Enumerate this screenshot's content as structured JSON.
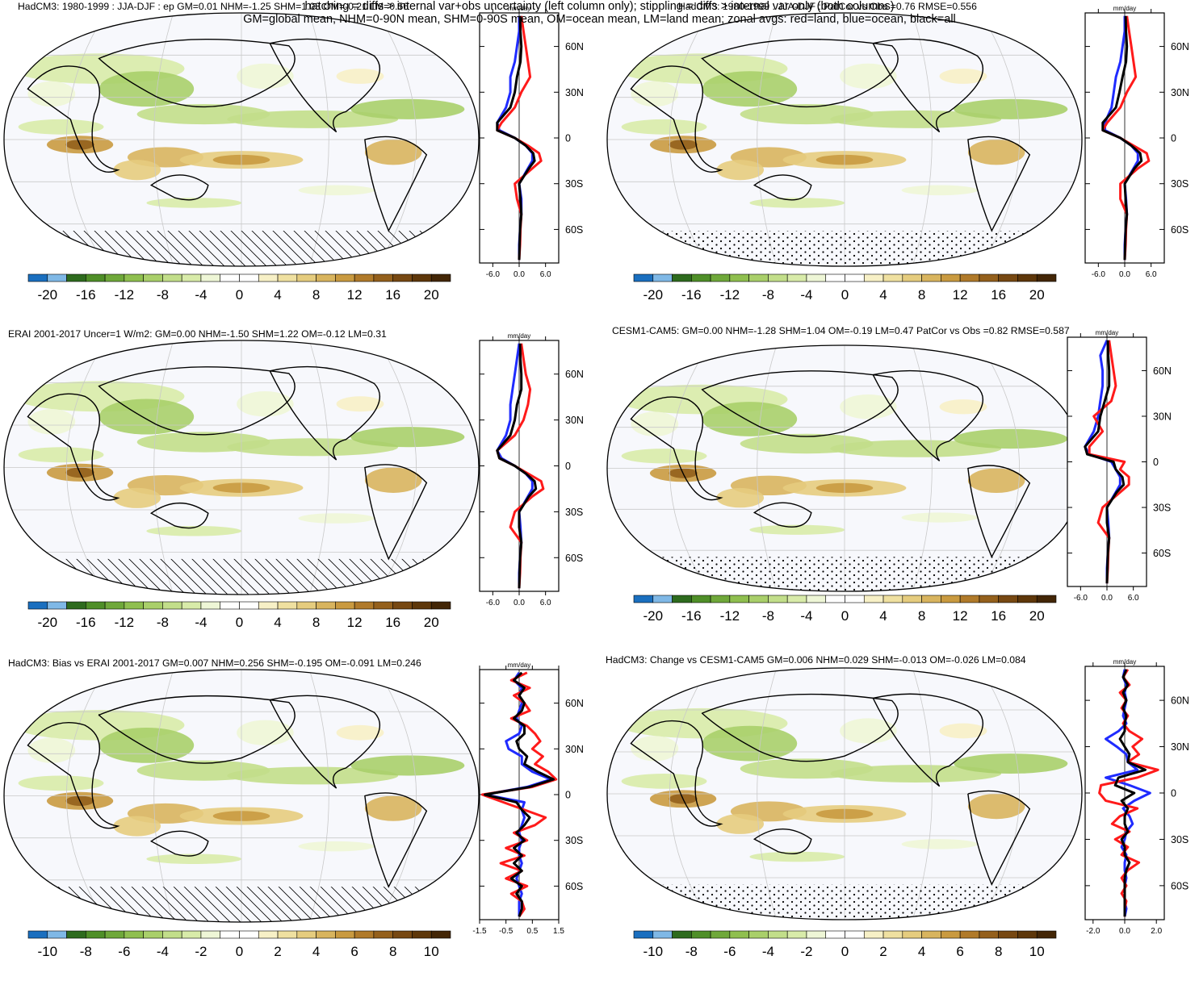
{
  "palette": [
    "#1a6fbf",
    "#7fb8e6",
    "#2e6b1e",
    "#4f8f28",
    "#6fa83a",
    "#8fbf4f",
    "#a9cf6a",
    "#c2de8a",
    "#d8eba9",
    "#eef6d6",
    "#ffffff",
    "#ffffff",
    "#f7f0c6",
    "#efe0a0",
    "#e5cc7e",
    "#d8b45e",
    "#c99a40",
    "#b07a2a",
    "#94601c",
    "#774812",
    "#5e370a",
    "#432606"
  ],
  "series_colors": {
    "land": "#ff1a1a",
    "ocean": "#1f2bff",
    "all": "#000000"
  },
  "footer": {
    "line1": "hatching = diffs > internal var+obs uncertainty (left column only); stippling = diffs > internal var only (both columns)",
    "line2": "GM=global mean, NHM=0-90N mean, SHM=0-90S mean, OM=ocean mean, LM=land mean; zonal avgs: red=land, blue=ocean, black=all"
  },
  "chart_data": [
    {
      "type": "heatmap",
      "title": "HadCM3: 1980-1999 : JJA-DJF : ep GM=0.01 NHM=-1.25 SHM=1.03 OM=-0.21 LM=0.56",
      "colorbar_labels": [
        "-20",
        "-16",
        "-12",
        "-8",
        "-4",
        "0",
        "4",
        "8",
        "12",
        "16",
        "20"
      ],
      "colorbar_range": [
        -22,
        22
      ],
      "hatching": true,
      "zonal": {
        "type": "line",
        "units": "mm/day",
        "xticks": [
          "-6.0",
          "0.0",
          "6.0"
        ],
        "xlim": [
          -9,
          9
        ],
        "ylabels": [
          "60N",
          "30N",
          "0",
          "30S",
          "60S"
        ],
        "ylim": [
          -82,
          82
        ],
        "lat": [
          80,
          70,
          60,
          50,
          40,
          30,
          20,
          10,
          5,
          0,
          -5,
          -10,
          -15,
          -20,
          -30,
          -40,
          -50,
          -60,
          -70,
          -80
        ],
        "land": [
          0.5,
          1,
          1.5,
          2,
          2.5,
          0.5,
          -1,
          -4,
          -5,
          -1,
          2,
          4.5,
          5,
          3,
          -1,
          -0.5,
          0.5,
          0.3,
          0.2,
          0
        ],
        "ocean": [
          0,
          0,
          -0.5,
          -1,
          -2,
          -2,
          -3,
          -5,
          -4.5,
          -1,
          1.5,
          3,
          3,
          2,
          0,
          0.5,
          0.5,
          0.2,
          0,
          0
        ],
        "all": [
          0.2,
          0.3,
          0.5,
          0.3,
          -0.5,
          -1,
          -2,
          -5,
          -5,
          -1,
          1.5,
          3.2,
          3.5,
          2.2,
          0,
          0.3,
          0.5,
          0.2,
          0.1,
          0
        ]
      }
    },
    {
      "type": "heatmap",
      "title": "HadCM3: 1980-1999 : JJA-DJF : PatCor vs Obs =0.76 RMSE=0.556",
      "colorbar_labels": [
        "-20",
        "-16",
        "-12",
        "-8",
        "-4",
        "0",
        "4",
        "8",
        "12",
        "16",
        "20"
      ],
      "colorbar_range": [
        -22,
        22
      ],
      "hatching": false,
      "zonal": {
        "type": "line",
        "units": "mm/day",
        "xticks": [
          "-6.0",
          "0.0",
          "6.0"
        ],
        "xlim": [
          -9,
          9
        ],
        "ylabels": [
          "60N",
          "30N",
          "0",
          "30S",
          "60S"
        ],
        "ylim": [
          -82,
          82
        ],
        "lat": [
          80,
          70,
          60,
          50,
          40,
          30,
          20,
          10,
          5,
          0,
          -5,
          -10,
          -15,
          -20,
          -30,
          -40,
          -50,
          -60,
          -70,
          -80
        ],
        "land": [
          0.5,
          1,
          1.5,
          2,
          2.5,
          0.5,
          -1,
          -4,
          -5,
          -1,
          2,
          5,
          5.5,
          3,
          -1,
          -1,
          0.5,
          0.3,
          0.2,
          0
        ],
        "ocean": [
          0,
          0,
          -0.5,
          -1,
          -2,
          -2.5,
          -3,
          -4.5,
          -4.5,
          -1,
          1.5,
          3,
          3,
          2,
          0,
          0.3,
          0.5,
          0.2,
          0,
          0
        ],
        "all": [
          0.2,
          0.3,
          0.5,
          0.3,
          -0.5,
          -1.2,
          -2,
          -5,
          -5,
          -1,
          1.5,
          3.5,
          3.8,
          2.2,
          0,
          0.2,
          0.5,
          0.2,
          0.1,
          0
        ]
      }
    },
    {
      "type": "heatmap",
      "title": "ERAI 2001-2017 Uncer=1 W/m2: GM=0.00 NHM=-1.50 SHM=1.22 OM=-0.12 LM=0.31",
      "colorbar_labels": [
        "-20",
        "-16",
        "-12",
        "-8",
        "-4",
        "0",
        "4",
        "8",
        "12",
        "16",
        "20"
      ],
      "colorbar_range": [
        -22,
        22
      ],
      "hatching": true,
      "zonal": {
        "type": "line",
        "units": "mm/day",
        "xticks": [
          "-6.0",
          "0.0",
          "6.0"
        ],
        "xlim": [
          -9,
          9
        ],
        "ylabels": [
          "60N",
          "30N",
          "0",
          "30S",
          "60S"
        ],
        "ylim": [
          -82,
          82
        ],
        "lat": [
          80,
          70,
          60,
          50,
          40,
          30,
          20,
          10,
          5,
          0,
          -5,
          -10,
          -15,
          -20,
          -30,
          -40,
          -50,
          -60,
          -70,
          -80
        ],
        "land": [
          0.5,
          1,
          1.5,
          2.5,
          2,
          1,
          -1,
          -5,
          -4.5,
          -1,
          2,
          5,
          5.5,
          3,
          -1,
          -2,
          0.5,
          0.3,
          0.2,
          0
        ],
        "ocean": [
          0,
          -0.5,
          -1,
          -1.5,
          -2,
          -2,
          -3,
          -5,
          -4,
          -1,
          1.5,
          3,
          3,
          2,
          0,
          0.3,
          0.5,
          0.2,
          0,
          0
        ],
        "all": [
          0.2,
          0.3,
          0.5,
          0.5,
          -0.5,
          -1,
          -2,
          -5,
          -4.5,
          -1,
          1.5,
          3.5,
          3.8,
          2.2,
          0,
          0,
          0.5,
          0.2,
          0.1,
          0
        ]
      }
    },
    {
      "type": "heatmap",
      "title": "CESM1-CAM5: GM=0.00 NHM=-1.28 SHM=1.04 OM=-0.19 LM=0.47 PatCor vs Obs =0.82 RMSE=0.587",
      "colorbar_labels": [
        "-20",
        "-16",
        "-12",
        "-8",
        "-4",
        "0",
        "4",
        "8",
        "12",
        "16",
        "20"
      ],
      "colorbar_range": [
        -22,
        22
      ],
      "hatching": false,
      "zonal": {
        "type": "line",
        "units": "mm/day",
        "xticks": [
          "-6.0",
          "0.0",
          "6.0"
        ],
        "xlim": [
          -9,
          9
        ],
        "ylabels": [
          "60N",
          "30N",
          "0",
          "30S",
          "60S"
        ],
        "ylim": [
          -82,
          82
        ],
        "lat": [
          80,
          70,
          60,
          50,
          40,
          30,
          20,
          10,
          5,
          0,
          -5,
          -10,
          -15,
          -20,
          -30,
          -40,
          -50,
          -60,
          -70,
          -80
        ],
        "land": [
          0.5,
          1,
          1.5,
          2,
          1,
          -3,
          -1,
          -4,
          -4,
          4,
          3,
          5,
          5,
          3,
          -1,
          -2,
          0.5,
          0.3,
          0.2,
          0
        ],
        "ocean": [
          0,
          -1.5,
          -1,
          -1,
          -1.5,
          -2,
          -3,
          -5,
          -4,
          1,
          2,
          3,
          3,
          2,
          0,
          0.3,
          0.5,
          0.2,
          0,
          0
        ],
        "all": [
          0.2,
          0.3,
          0.5,
          0.5,
          -0.5,
          -1.5,
          -2,
          -5,
          -4.5,
          1.5,
          2,
          3.5,
          3.8,
          2.2,
          0,
          0,
          0.5,
          0.2,
          0.1,
          0
        ]
      }
    },
    {
      "type": "heatmap",
      "title": "HadCM3: Bias vs ERAI 2001-2017 GM=0.007 NHM=0.256 SHM=-0.195 OM=-0.091 LM=0.246",
      "colorbar_labels": [
        "-10",
        "-8",
        "-6",
        "-4",
        "-2",
        "0",
        "2",
        "4",
        "6",
        "8",
        "10"
      ],
      "colorbar_range": [
        -11,
        11
      ],
      "hatching": true,
      "zonal": {
        "type": "line",
        "units": "mm/day",
        "xticks": [
          "-1.5",
          "-0.5",
          "0.5",
          "1.5"
        ],
        "xlim": [
          -1.5,
          1.5
        ],
        "ylabels": [
          "60N",
          "30N",
          "0",
          "30S",
          "60S"
        ],
        "ylim": [
          -82,
          82
        ],
        "lat": [
          80,
          75,
          70,
          65,
          60,
          55,
          50,
          45,
          40,
          35,
          30,
          25,
          20,
          15,
          10,
          5,
          0,
          -5,
          -10,
          -15,
          -20,
          -25,
          -30,
          -35,
          -40,
          -45,
          -50,
          -55,
          -60,
          -65,
          -70,
          -75,
          -80
        ],
        "land": [
          0.3,
          -0.3,
          0.4,
          -0.2,
          0.2,
          0.4,
          -0.3,
          0.3,
          0.6,
          0.8,
          0.5,
          0.9,
          0.6,
          1.1,
          1.4,
          0.5,
          -1.4,
          -0.6,
          0.2,
          1.0,
          0.6,
          -0.2,
          0.3,
          -0.5,
          0.2,
          -0.7,
          0.1,
          -0.5,
          0.3,
          -0.3,
          0.1,
          0.2,
          0
        ],
        "ocean": [
          0,
          -0.2,
          0.1,
          0,
          0.1,
          0,
          -0.1,
          0.1,
          0,
          -0.5,
          -0.4,
          0.1,
          0.1,
          0.5,
          1.2,
          0.3,
          -1.3,
          0.2,
          0.1,
          0.2,
          0.1,
          0,
          0.1,
          0,
          0,
          0.1,
          0,
          -0.1,
          0,
          0.1,
          0,
          0,
          0
        ],
        "all": [
          0.1,
          -0.2,
          0.2,
          0,
          0.2,
          0.1,
          -0.2,
          0.2,
          0.2,
          -0.1,
          0,
          0.3,
          0.2,
          0.7,
          1.3,
          0.4,
          -1.3,
          -0.1,
          0.1,
          0.4,
          0.2,
          -0.1,
          0.2,
          -0.2,
          0.1,
          -0.2,
          0.1,
          -0.3,
          0.1,
          -0.1,
          0.1,
          0.1,
          0
        ]
      }
    },
    {
      "type": "heatmap",
      "title": "HadCM3: Change vs CESM1-CAM5 GM=0.006 NHM=0.029 SHM=-0.013 OM=-0.026 LM=0.084",
      "colorbar_labels": [
        "-10",
        "-8",
        "-6",
        "-4",
        "-2",
        "0",
        "2",
        "4",
        "6",
        "8",
        "10"
      ],
      "colorbar_range": [
        -11,
        11
      ],
      "hatching": false,
      "zonal": {
        "type": "line",
        "units": "mm/day",
        "xticks": [
          "-2.0",
          "0.0",
          "2.0"
        ],
        "xlim": [
          -2.5,
          2.5
        ],
        "ylabels": [
          "60N",
          "30N",
          "0",
          "30S",
          "60S"
        ],
        "ylim": [
          -82,
          82
        ],
        "lat": [
          80,
          75,
          70,
          65,
          60,
          55,
          50,
          45,
          40,
          35,
          30,
          25,
          20,
          15,
          10,
          5,
          0,
          -5,
          -10,
          -15,
          -20,
          -25,
          -30,
          -35,
          -40,
          -45,
          -50,
          -55,
          -60,
          -65,
          -70,
          -75,
          -80
        ],
        "land": [
          0.2,
          -0.1,
          0.3,
          -0.3,
          0.1,
          -0.2,
          0.2,
          -0.1,
          0.3,
          1.1,
          0.5,
          0.9,
          0.2,
          2.1,
          0.8,
          -1.5,
          -1.6,
          -1.2,
          0.8,
          -0.3,
          -0.8,
          0.3,
          -0.6,
          0.2,
          -0.2,
          0.9,
          0.2,
          -0.2,
          0.1,
          -0.2,
          0.1,
          0,
          0
        ],
        "ocean": [
          0,
          -0.1,
          0.1,
          0,
          0.1,
          0,
          -0.1,
          0.1,
          -0.4,
          -1.2,
          -0.5,
          0.1,
          0.2,
          0.8,
          -1.2,
          0.3,
          1.6,
          0.6,
          -0.1,
          0.3,
          0.5,
          0.1,
          0,
          -0.2,
          0.1,
          0,
          0,
          0.1,
          0,
          0,
          0,
          0.1,
          0
        ],
        "all": [
          0.1,
          -0.1,
          0.2,
          -0.1,
          0.1,
          -0.1,
          0.1,
          0,
          0,
          -0.3,
          0,
          0.3,
          0.2,
          1.3,
          -0.4,
          -0.6,
          0.6,
          -0.2,
          0.2,
          0,
          0,
          0.2,
          -0.2,
          0,
          0,
          0.3,
          0.1,
          0,
          0,
          0,
          0,
          0,
          0
        ]
      }
    }
  ]
}
